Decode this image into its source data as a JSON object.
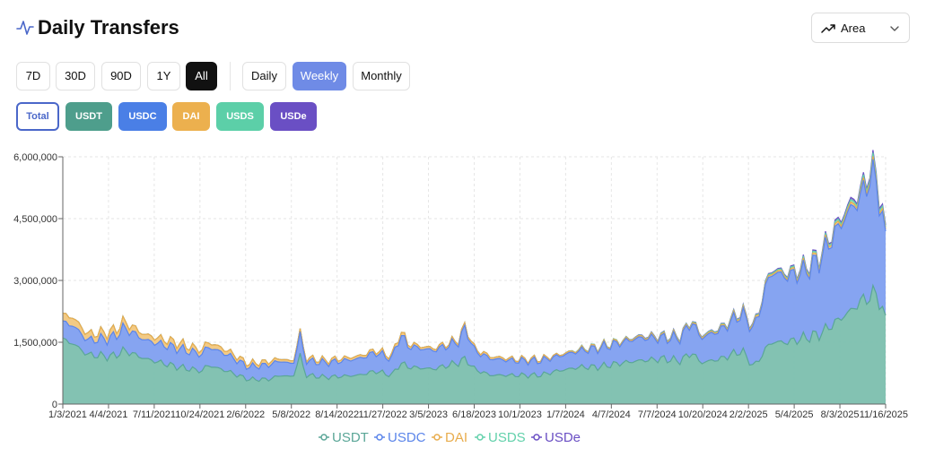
{
  "header": {
    "title": "Daily Transfers",
    "chart_type_label": "Area"
  },
  "range_buttons": [
    {
      "label": "7D",
      "active": false
    },
    {
      "label": "30D",
      "active": false
    },
    {
      "label": "90D",
      "active": false
    },
    {
      "label": "1Y",
      "active": false
    },
    {
      "label": "All",
      "active": true
    }
  ],
  "interval_buttons": [
    {
      "label": "Daily",
      "active": false
    },
    {
      "label": "Weekly",
      "active": true
    },
    {
      "label": "Monthly",
      "active": false
    }
  ],
  "series_buttons": [
    {
      "label": "Total",
      "color": "#4a67c9"
    },
    {
      "label": "USDT",
      "color": "#4e9e8c"
    },
    {
      "label": "USDC",
      "color": "#4a7fe6"
    },
    {
      "label": "DAI",
      "color": "#ecb04e"
    },
    {
      "label": "USDS",
      "color": "#5ccfa8"
    },
    {
      "label": "USDe",
      "color": "#6a4fc4"
    }
  ],
  "chart_data": {
    "type": "area",
    "stacked": true,
    "title": "",
    "xlabel": "",
    "ylabel": "",
    "ylim": [
      0,
      6000000
    ],
    "yticks": [
      0,
      1500000,
      3000000,
      4500000,
      6000000
    ],
    "ytick_labels": [
      "0",
      "1,500,000",
      "3,000,000",
      "4,500,000",
      "6,000,000"
    ],
    "xtick_labels": [
      "1/3/2021",
      "4/4/2021",
      "7/11/2021",
      "10/24/2021",
      "2/6/2022",
      "5/8/2022",
      "8/14/2022",
      "11/27/2022",
      "3/5/2023",
      "6/18/2023",
      "10/1/2023",
      "1/7/2024",
      "4/7/2024",
      "7/7/2024",
      "10/20/2024",
      "2/2/2025",
      "5/4/2025",
      "8/3/2025",
      "11/16/2025"
    ],
    "grid": true,
    "legend_position": "bottom",
    "series_colors": {
      "USDT": {
        "stroke": "#5aa697",
        "fill": "#7cbfae"
      },
      "USDC": {
        "stroke": "#5b85ea",
        "fill": "#7f9ff0"
      },
      "DAI": {
        "stroke": "#e8ac4c",
        "fill": "#f1c77e"
      },
      "USDS": {
        "stroke": "#62d1ab",
        "fill": "#8fe0c2"
      },
      "USDe": {
        "stroke": "#6a4fc4",
        "fill": "#8c78d4"
      }
    },
    "key_points": [
      {
        "t": 0.0,
        "USDT": 1550000,
        "USDC": 400000,
        "DAI": 180000,
        "USDS": 0,
        "USDe": 0
      },
      {
        "t": 0.01,
        "USDT": 1500000,
        "USDC": 450000,
        "DAI": 200000,
        "USDS": 0,
        "USDe": 0
      },
      {
        "t": 0.03,
        "USDT": 1200000,
        "USDC": 350000,
        "DAI": 150000,
        "USDS": 0,
        "USDe": 0
      },
      {
        "t": 0.06,
        "USDT": 1150000,
        "USDC": 450000,
        "DAI": 150000,
        "USDS": 0,
        "USDe": 0
      },
      {
        "t": 0.075,
        "USDT": 1300000,
        "USDC": 550000,
        "DAI": 150000,
        "USDS": 0,
        "USDe": 0
      },
      {
        "t": 0.1,
        "USDT": 1100000,
        "USDC": 450000,
        "DAI": 130000,
        "USDS": 0,
        "USDe": 0
      },
      {
        "t": 0.14,
        "USDT": 900000,
        "USDC": 450000,
        "DAI": 130000,
        "USDS": 0,
        "USDe": 0
      },
      {
        "t": 0.17,
        "USDT": 800000,
        "USDC": 400000,
        "DAI": 100000,
        "USDS": 0,
        "USDe": 0
      },
      {
        "t": 0.175,
        "USDT": 950000,
        "USDC": 450000,
        "DAI": 120000,
        "USDS": 0,
        "USDe": 0
      },
      {
        "t": 0.2,
        "USDT": 800000,
        "USDC": 400000,
        "DAI": 100000,
        "USDS": 0,
        "USDe": 0
      },
      {
        "t": 0.225,
        "USDT": 600000,
        "USDC": 300000,
        "DAI": 80000,
        "USDS": 0,
        "USDe": 0
      },
      {
        "t": 0.25,
        "USDT": 600000,
        "USDC": 350000,
        "DAI": 80000,
        "USDS": 0,
        "USDe": 0
      },
      {
        "t": 0.265,
        "USDT": 700000,
        "USDC": 350000,
        "DAI": 60000,
        "USDS": 0,
        "USDe": 0
      },
      {
        "t": 0.28,
        "USDT": 650000,
        "USDC": 300000,
        "DAI": 60000,
        "USDS": 0,
        "USDe": 0
      },
      {
        "t": 0.288,
        "USDT": 1200000,
        "USDC": 500000,
        "DAI": 80000,
        "USDS": 0,
        "USDe": 0
      },
      {
        "t": 0.295,
        "USDT": 700000,
        "USDC": 350000,
        "DAI": 60000,
        "USDS": 0,
        "USDe": 0
      },
      {
        "t": 0.32,
        "USDT": 650000,
        "USDC": 350000,
        "DAI": 60000,
        "USDS": 0,
        "USDe": 0
      },
      {
        "t": 0.36,
        "USDT": 700000,
        "USDC": 400000,
        "DAI": 60000,
        "USDS": 0,
        "USDe": 0
      },
      {
        "t": 0.38,
        "USDT": 800000,
        "USDC": 450000,
        "DAI": 60000,
        "USDS": 0,
        "USDe": 0
      },
      {
        "t": 0.4,
        "USDT": 700000,
        "USDC": 400000,
        "DAI": 60000,
        "USDS": 0,
        "USDe": 0
      },
      {
        "t": 0.41,
        "USDT": 1000000,
        "USDC": 700000,
        "DAI": 80000,
        "USDS": 0,
        "USDe": 0
      },
      {
        "t": 0.42,
        "USDT": 900000,
        "USDC": 500000,
        "DAI": 60000,
        "USDS": 0,
        "USDe": 0
      },
      {
        "t": 0.45,
        "USDT": 850000,
        "USDC": 450000,
        "DAI": 50000,
        "USDS": 0,
        "USDe": 0
      },
      {
        "t": 0.48,
        "USDT": 1000000,
        "USDC": 500000,
        "DAI": 50000,
        "USDS": 0,
        "USDe": 0
      },
      {
        "t": 0.49,
        "USDT": 1100000,
        "USDC": 750000,
        "DAI": 60000,
        "USDS": 0,
        "USDe": 0
      },
      {
        "t": 0.5,
        "USDT": 850000,
        "USDC": 450000,
        "DAI": 50000,
        "USDS": 0,
        "USDe": 0
      },
      {
        "t": 0.52,
        "USDT": 700000,
        "USDC": 400000,
        "DAI": 50000,
        "USDS": 0,
        "USDe": 0
      },
      {
        "t": 0.55,
        "USDT": 700000,
        "USDC": 350000,
        "DAI": 40000,
        "USDS": 0,
        "USDe": 0
      },
      {
        "t": 0.58,
        "USDT": 700000,
        "USDC": 350000,
        "DAI": 40000,
        "USDS": 0,
        "USDe": 0
      },
      {
        "t": 0.6,
        "USDT": 800000,
        "USDC": 350000,
        "DAI": 30000,
        "USDS": 0,
        "USDe": 0
      },
      {
        "t": 0.63,
        "USDT": 900000,
        "USDC": 400000,
        "DAI": 30000,
        "USDS": 10000,
        "USDe": 0
      },
      {
        "t": 0.65,
        "USDT": 900000,
        "USDC": 450000,
        "DAI": 30000,
        "USDS": 10000,
        "USDe": 0
      },
      {
        "t": 0.68,
        "USDT": 1000000,
        "USDC": 500000,
        "DAI": 30000,
        "USDS": 10000,
        "USDe": 0
      },
      {
        "t": 0.7,
        "USDT": 1050000,
        "USDC": 550000,
        "DAI": 30000,
        "USDS": 10000,
        "USDe": 10000
      },
      {
        "t": 0.73,
        "USDT": 1100000,
        "USDC": 500000,
        "DAI": 30000,
        "USDS": 15000,
        "USDe": 10000
      },
      {
        "t": 0.75,
        "USDT": 1050000,
        "USDC": 550000,
        "DAI": 30000,
        "USDS": 15000,
        "USDe": 10000
      },
      {
        "t": 0.765,
        "USDT": 1250000,
        "USDC": 750000,
        "DAI": 30000,
        "USDS": 15000,
        "USDe": 10000
      },
      {
        "t": 0.775,
        "USDT": 1000000,
        "USDC": 600000,
        "DAI": 30000,
        "USDS": 15000,
        "USDe": 10000
      },
      {
        "t": 0.8,
        "USDT": 1100000,
        "USDC": 700000,
        "DAI": 30000,
        "USDS": 20000,
        "USDe": 10000
      },
      {
        "t": 0.825,
        "USDT": 1300000,
        "USDC": 900000,
        "DAI": 40000,
        "USDS": 20000,
        "USDe": 15000
      },
      {
        "t": 0.84,
        "USDT": 900000,
        "USDC": 900000,
        "DAI": 40000,
        "USDS": 20000,
        "USDe": 15000
      },
      {
        "t": 0.86,
        "USDT": 1500000,
        "USDC": 1700000,
        "DAI": 40000,
        "USDS": 30000,
        "USDe": 20000
      },
      {
        "t": 0.88,
        "USDT": 1500000,
        "USDC": 1600000,
        "DAI": 40000,
        "USDS": 30000,
        "USDe": 20000
      },
      {
        "t": 0.9,
        "USDT": 1600000,
        "USDC": 1600000,
        "DAI": 50000,
        "USDS": 40000,
        "USDe": 30000
      },
      {
        "t": 0.92,
        "USDT": 1700000,
        "USDC": 1800000,
        "DAI": 50000,
        "USDS": 40000,
        "USDe": 30000
      },
      {
        "t": 0.94,
        "USDT": 2000000,
        "USDC": 2200000,
        "DAI": 60000,
        "USDS": 50000,
        "USDe": 40000
      },
      {
        "t": 0.96,
        "USDT": 2300000,
        "USDC": 2500000,
        "DAI": 60000,
        "USDS": 60000,
        "USDe": 50000
      },
      {
        "t": 0.97,
        "USDT": 2500000,
        "USDC": 2500000,
        "DAI": 60000,
        "USDS": 60000,
        "USDe": 50000
      },
      {
        "t": 0.98,
        "USDT": 2600000,
        "USDC": 2900000,
        "DAI": 70000,
        "USDS": 80000,
        "USDe": 60000
      },
      {
        "t": 0.99,
        "USDT": 2700000,
        "USDC": 2700000,
        "DAI": 70000,
        "USDS": 80000,
        "USDe": 60000
      },
      {
        "t": 1.0,
        "USDT": 2000000,
        "USDC": 1900000,
        "DAI": 50000,
        "USDS": 50000,
        "USDe": 40000
      }
    ],
    "series_order": [
      "USDT",
      "USDC",
      "DAI",
      "USDS",
      "USDe"
    ]
  }
}
